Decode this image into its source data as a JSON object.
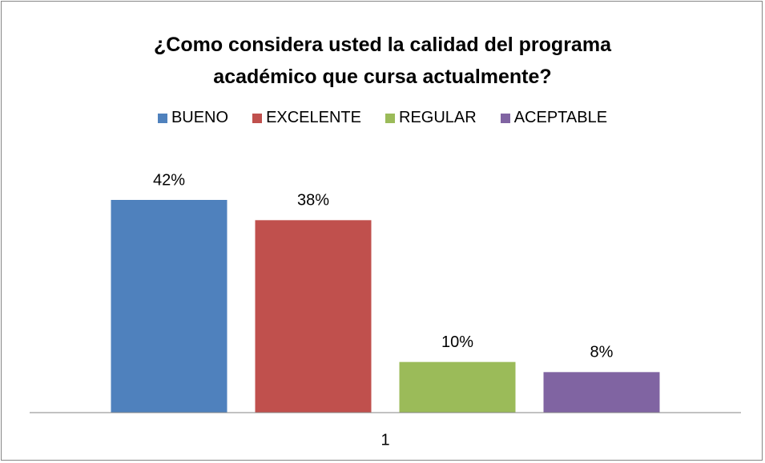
{
  "chart_data": {
    "type": "bar",
    "title": "¿Como considera usted la calidad del programa académico que cursa actualmente?",
    "categories": [
      "1"
    ],
    "series": [
      {
        "name": "BUENO",
        "color": "#4f81bd",
        "values": [
          42
        ],
        "value_labels": [
          "42%"
        ]
      },
      {
        "name": "EXCELENTE",
        "color": "#c0504d",
        "values": [
          38
        ],
        "value_labels": [
          "38%"
        ]
      },
      {
        "name": "REGULAR",
        "color": "#9bbb59",
        "values": [
          10
        ],
        "value_labels": [
          "10%"
        ]
      },
      {
        "name": "ACEPTABLE",
        "color": "#8064a2",
        "values": [
          8
        ],
        "value_labels": [
          "8%"
        ]
      }
    ],
    "legend": "top"
  }
}
